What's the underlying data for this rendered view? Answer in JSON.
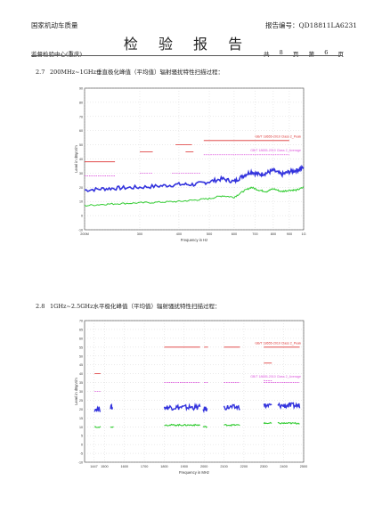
{
  "header": {
    "org": "国家机动车质量",
    "title": "检 验 报 告",
    "report_no_label": "报告编号：",
    "report_no": "QD18811LA6231",
    "center": "监督检验中心(重庆)",
    "total_label": "共",
    "total_pages": "8",
    "page_unit": "页",
    "page_label": "第",
    "page_number": "6",
    "page_unit2": "页"
  },
  "sections": [
    {
      "number": "2.7",
      "title": "200MHz~1GHz垂直极化峰值（平均值）辐射骚扰特性扫描过程："
    },
    {
      "number": "2.8",
      "title": "1GHz~2.5GHz水平极化峰值（平均值）辐射骚扰特性扫描过程："
    }
  ],
  "chart_data": [
    {
      "type": "line",
      "ylabel": "Level in dBµV/m",
      "xlabel": "Frequency in Hz",
      "x_scale": "log",
      "xlim": [
        200,
        1000
      ],
      "ylim": [
        -10,
        90
      ],
      "yticks": [
        -10,
        0,
        10,
        20,
        30,
        40,
        50,
        60,
        70,
        80,
        90
      ],
      "xtick_labels": [
        "200M",
        "300",
        "400",
        "500",
        "600",
        "700",
        "800",
        "900",
        "1G"
      ],
      "xtick_values": [
        200,
        300,
        400,
        500,
        600,
        700,
        800,
        900,
        1000
      ],
      "grid": true,
      "annotations": [
        "GB/T 18655-2010 Class 2_Peak",
        "GB/T 18655-2010 Class 2_Average"
      ],
      "colors": {
        "peak_scan": "#3333dd",
        "average_scan": "#33cc33",
        "peak_limit": "#dd3333",
        "average_limit": "#dd55dd"
      },
      "series": [
        {
          "name": "GB/T 18655-2010 Class 2_Peak",
          "style": "limit",
          "color": "#dd3333",
          "segments": [
            [
              200,
              250,
              38
            ],
            [
              300,
              330,
              45
            ],
            [
              390,
              440,
              50
            ],
            [
              420,
              445,
              45
            ],
            [
              480,
              900,
              53
            ]
          ]
        },
        {
          "name": "GB/T 18655-2010 Class 2_Average",
          "style": "limit",
          "color": "#dd55dd",
          "segments": [
            [
              200,
              250,
              28
            ],
            [
              300,
              330,
              30
            ],
            [
              380,
              470,
              30
            ],
            [
              480,
              900,
              43
            ]
          ]
        },
        {
          "style": "peak-scan",
          "color": "#3333dd",
          "x": [
            200,
            230,
            260,
            300,
            350,
            400,
            450,
            500,
            550,
            600,
            640,
            680,
            720,
            760,
            800,
            850,
            900,
            950,
            1000
          ],
          "y": [
            18,
            19,
            19.5,
            20,
            21,
            22,
            22,
            24,
            26,
            24,
            28,
            31,
            29,
            30,
            32,
            29,
            31,
            32,
            34
          ]
        },
        {
          "style": "average-scan",
          "color": "#33cc33",
          "x": [
            200,
            230,
            260,
            300,
            350,
            400,
            450,
            500,
            550,
            600,
            640,
            680,
            720,
            760,
            800,
            850,
            900,
            950,
            1000
          ],
          "y": [
            7,
            8,
            8.5,
            9,
            9.5,
            10,
            11,
            12,
            14,
            13,
            17,
            20,
            18,
            17,
            19,
            17,
            18,
            18,
            20
          ]
        }
      ]
    },
    {
      "type": "line",
      "ylabel": "Level in dBµV/m",
      "xlabel": "Frequency in MHz",
      "xlim": [
        1400,
        2500
      ],
      "ylim": [
        -10,
        70
      ],
      "yticks": [
        -10,
        -5,
        0,
        5,
        10,
        15,
        20,
        25,
        30,
        35,
        40,
        45,
        50,
        55,
        60,
        65,
        70
      ],
      "xtick_labels": [
        "1447",
        "1500",
        "1600",
        "1700",
        "1800",
        "1900",
        "2000",
        "2100",
        "2200",
        "2300",
        "2400",
        "2500"
      ],
      "xtick_values": [
        1447,
        1500,
        1600,
        1700,
        1800,
        1900,
        2000,
        2100,
        2200,
        2300,
        2400,
        2500
      ],
      "grid": true,
      "annotations": [
        "GB/T 18655-2010 Class 2_Peak",
        "GB/T 18655-2010 Class 2_Average"
      ],
      "colors": {
        "peak_scan": "#3333dd",
        "average_scan": "#33cc33",
        "peak_limit": "#dd3333",
        "average_limit": "#dd55dd"
      },
      "series": [
        {
          "name": "GB/T 18655-2010 Class 2_Peak",
          "style": "limit",
          "color": "#dd3333",
          "segments": [
            [
              1450,
              1480,
              40
            ],
            [
              1800,
              1980,
              55
            ],
            [
              2000,
              2020,
              55
            ],
            [
              2100,
              2180,
              55
            ],
            [
              2300,
              2340,
              46
            ],
            [
              2300,
              2480,
              55
            ]
          ]
        },
        {
          "name": "GB/T 18655-2010 Class 2_Average",
          "style": "limit",
          "color": "#dd55dd",
          "segments": [
            [
              1450,
              1480,
              30
            ],
            [
              1800,
              1980,
              35
            ],
            [
              2000,
              2020,
              35
            ],
            [
              2100,
              2180,
              35
            ],
            [
              2300,
              2340,
              36
            ],
            [
              2300,
              2480,
              35
            ]
          ]
        },
        {
          "style": "peak-scan",
          "color": "#3333dd",
          "segments": [
            [
              1450,
              1480,
              20
            ],
            [
              1530,
              1540,
              21
            ],
            [
              1800,
              1980,
              21
            ],
            [
              1995,
              2015,
              20
            ],
            [
              2100,
              2180,
              21
            ],
            [
              2300,
              2340,
              22
            ],
            [
              2370,
              2480,
              22
            ]
          ]
        },
        {
          "style": "average-scan",
          "color": "#33cc33",
          "segments": [
            [
              1450,
              1480,
              10
            ],
            [
              1530,
              1545,
              10
            ],
            [
              1800,
              1980,
              11
            ],
            [
              1995,
              2015,
              10
            ],
            [
              2100,
              2180,
              11
            ],
            [
              2300,
              2340,
              12
            ],
            [
              2370,
              2480,
              12
            ]
          ]
        }
      ]
    }
  ]
}
